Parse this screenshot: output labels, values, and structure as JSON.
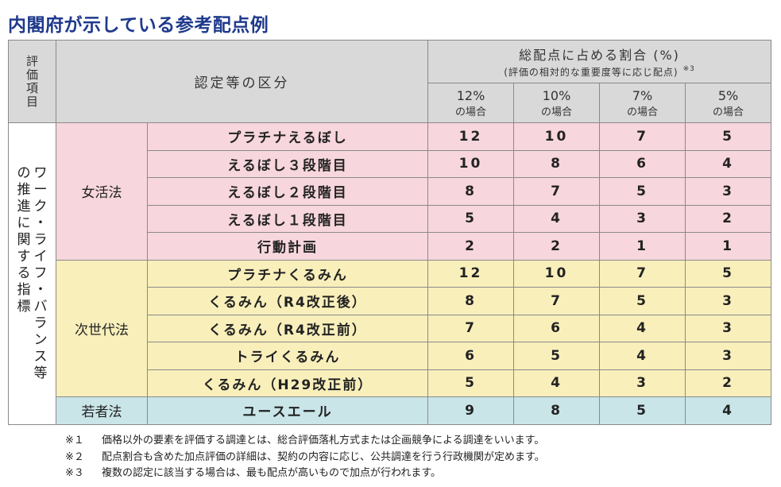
{
  "title": "内閣府が示している参考配点例",
  "header": {
    "eval_item": "評価項目",
    "eval_item_chars": [
      "評",
      "価",
      "項",
      "目"
    ],
    "category": "認定等の区分",
    "ratio_title": "総配点に占める割合 (%)",
    "ratio_sub": "(評価の相対的な重要度等に応じ配点)",
    "ratio_note": "※3",
    "columns": [
      {
        "top": "12%",
        "bottom": "の場合"
      },
      {
        "top": "10%",
        "bottom": "の場合"
      },
      {
        "top": "7%",
        "bottom": "の場合"
      },
      {
        "top": "5%",
        "bottom": "の場合"
      }
    ]
  },
  "group_label": "ワーク・ライフ・バランス等の推進に関する指標",
  "group_label_columns": [
    [
      "ワ",
      "ー",
      "ク",
      "・",
      "ラ",
      "イ",
      "フ",
      "・",
      "バ",
      "ラ",
      "ン",
      "ス",
      "等"
    ],
    [
      "の",
      "推",
      "進",
      "に",
      "関",
      "す",
      "る",
      "指",
      "標"
    ]
  ],
  "categories": [
    {
      "name": "女活法",
      "rows": [
        {
          "label": "プラチナえるぼし",
          "values": [
            "12",
            "10",
            "7",
            "5"
          ]
        },
        {
          "label": "えるぼし３段階目",
          "values": [
            "10",
            "8",
            "6",
            "4"
          ]
        },
        {
          "label": "えるぼし２段階目",
          "values": [
            "8",
            "7",
            "5",
            "3"
          ]
        },
        {
          "label": "えるぼし１段階目",
          "values": [
            "5",
            "4",
            "3",
            "2"
          ]
        },
        {
          "label": "行動計画",
          "values": [
            "2",
            "2",
            "1",
            "1"
          ]
        }
      ]
    },
    {
      "name": "次世代法",
      "rows": [
        {
          "label": "プラチナくるみん",
          "values": [
            "12",
            "10",
            "7",
            "5"
          ]
        },
        {
          "label": "くるみん（R4改正後）",
          "values": [
            "8",
            "7",
            "5",
            "3"
          ]
        },
        {
          "label": "くるみん（R4改正前）",
          "values": [
            "7",
            "6",
            "4",
            "3"
          ]
        },
        {
          "label": "トライくるみん",
          "values": [
            "6",
            "5",
            "4",
            "3"
          ]
        },
        {
          "label": "くるみん（H29改正前）",
          "values": [
            "5",
            "4",
            "3",
            "2"
          ]
        }
      ]
    },
    {
      "name": "若者法",
      "rows": [
        {
          "label": "ユースエール",
          "values": [
            "9",
            "8",
            "5",
            "4"
          ]
        }
      ]
    }
  ],
  "notes": [
    {
      "mark": "※１",
      "text": "価格以外の要素を評価する調達とは、総合評価落札方式または企画競争による調達をいいます。"
    },
    {
      "mark": "※２",
      "text": "配点割合も含めた加点評価の詳細は、契約の内容に応じ、公共調達を行う行政機関が定めます。"
    },
    {
      "mark": "※３",
      "text": "複数の認定に該当する場合は、最も配点が高いもので加点が行われます。"
    }
  ],
  "colors": {
    "title": "#1f3a8c",
    "header_bg": "#d9d9d9",
    "womens_bg": "#f7d6dd",
    "nextgen_bg": "#f8efbb",
    "youth_bg": "#c9e5e8"
  }
}
